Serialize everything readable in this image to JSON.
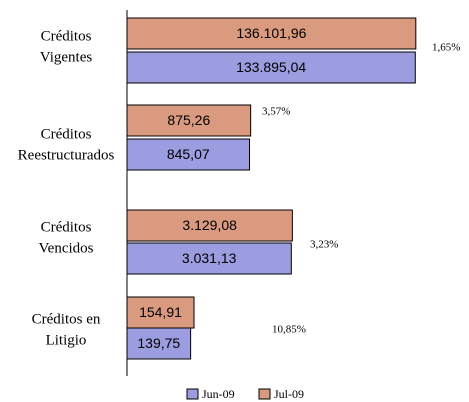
{
  "chart_data": {
    "type": "bar",
    "orientation": "horizontal",
    "log_scale": true,
    "categories": [
      [
        "Créditos",
        "Vigentes"
      ],
      [
        "Créditos",
        "Reestructurados"
      ],
      [
        "Créditos",
        "Vencidos"
      ],
      [
        "Créditos en",
        "Litigio"
      ]
    ],
    "series": [
      {
        "name": "Jul-09",
        "color": "#d99a80",
        "values": [
          136101.96,
          875.26,
          3129.08,
          154.91
        ],
        "value_labels": [
          "136.101,96",
          "875,26",
          "3.129,08",
          "154,91"
        ]
      },
      {
        "name": "Jun-09",
        "color": "#9c9ce0",
        "values": [
          133895.04,
          845.07,
          3031.13,
          139.75
        ],
        "value_labels": [
          "133.895,04",
          "845,07",
          "3.031,13",
          "139,75"
        ]
      }
    ],
    "legend_order": [
      "Jun-09",
      "Jul-09"
    ],
    "annotations": [
      "1,65%",
      "3,57%",
      "3,23%",
      "10,85%"
    ],
    "xlim": [
      20,
      150000
    ],
    "legend": "bottom"
  }
}
